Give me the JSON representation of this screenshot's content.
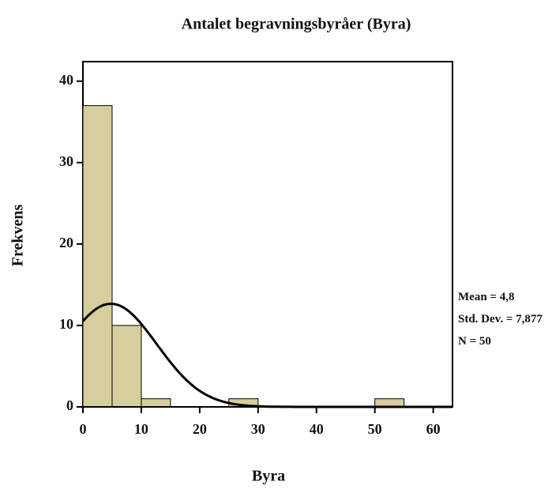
{
  "chart_data": {
    "type": "histogram",
    "title": "Antalet begravningsbyråer (Byra)",
    "x_label": "Byra",
    "y_label": "Frekvens",
    "bins": [
      0,
      5,
      10,
      15,
      20,
      25,
      30,
      35,
      40,
      45,
      50,
      55
    ],
    "counts": [
      37,
      10,
      1,
      0,
      0,
      1,
      0,
      0,
      0,
      0,
      1
    ],
    "color": "#d6cf9d",
    "xlim": [
      0,
      63.3
    ],
    "xticks": [
      0,
      10,
      20,
      30,
      40,
      50,
      60
    ],
    "ylim": [
      0,
      42.4
    ],
    "yticks": [
      0,
      10,
      20,
      30,
      40
    ],
    "normal_curve": {
      "mean": {
        "value": 4.8,
        "label": "Mean = 4,8"
      },
      "sd": {
        "value": 7.877,
        "label": "Std. Dev. = 7,877"
      },
      "n": {
        "value": 50,
        "label": "N = 50"
      }
    }
  }
}
